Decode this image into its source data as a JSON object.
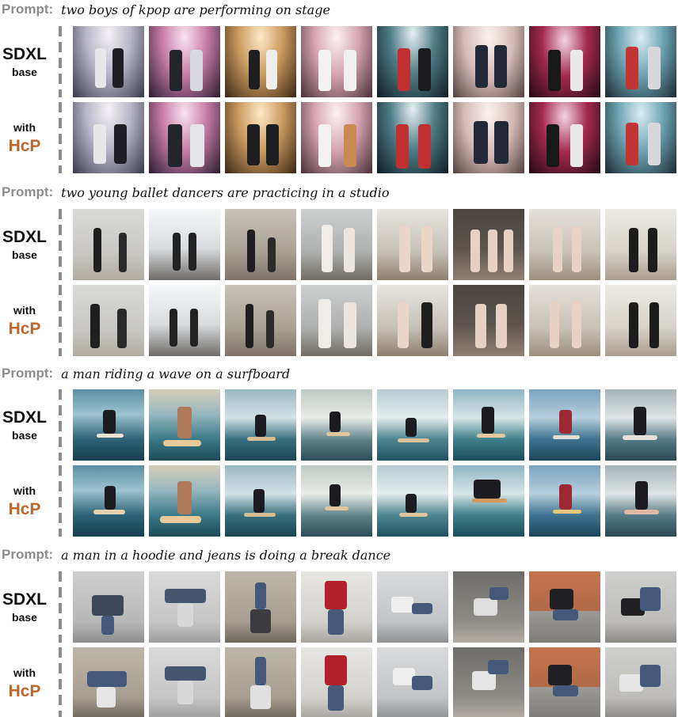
{
  "labels": {
    "prompt_label": "Prompt:",
    "base_line1": "SDXL",
    "base_line2": "base",
    "hcp_line1": "with",
    "hcp_line2": "HcP"
  },
  "colors": {
    "prompt_label": "#8c8c8c",
    "hcp_accent": "#c0662a",
    "dash_line": "#8d8d8d"
  },
  "sections": [
    {
      "prompt": "two boys of kpop are performing on stage",
      "scene": "kpop"
    },
    {
      "prompt": "two young ballet dancers are practicing in a studio",
      "scene": "ballet"
    },
    {
      "prompt": "a man riding a wave on a surfboard",
      "scene": "surf"
    },
    {
      "prompt": "a man in a hoodie and jeans is doing a break dance",
      "scene": "breakdance"
    }
  ]
}
